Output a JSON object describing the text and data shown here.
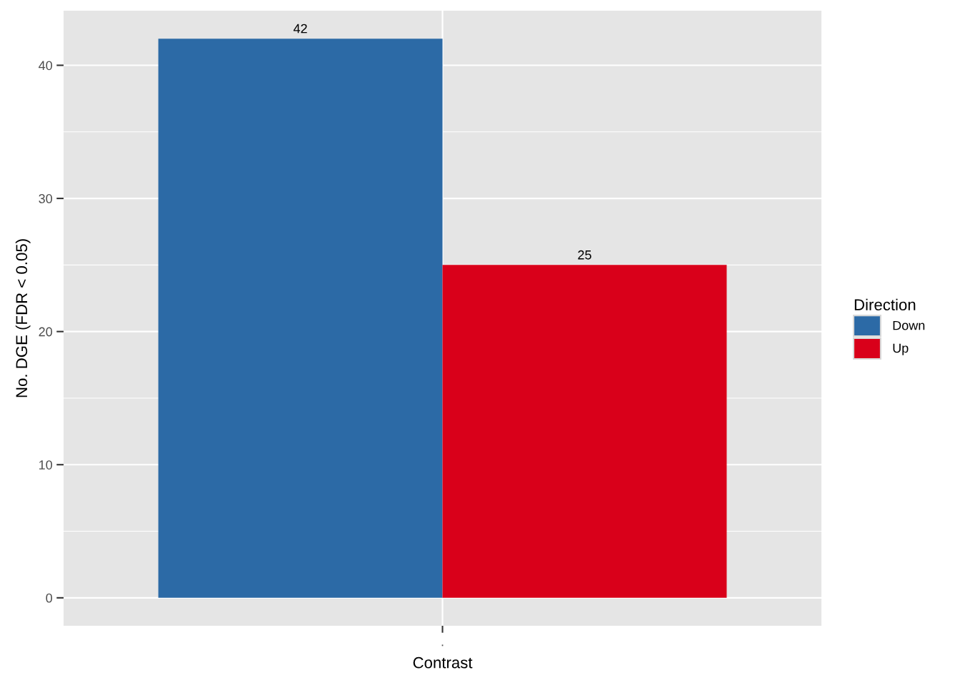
{
  "chart_data": {
    "type": "bar",
    "xlabel": "Contrast",
    "ylabel": "No. DGE (FDR < 0.05)",
    "legend_title": "Direction",
    "categories": [
      "."
    ],
    "series": [
      {
        "name": "Down",
        "color": "#2c6aa6",
        "values": [
          42
        ]
      },
      {
        "name": "Up",
        "color": "#d9001a",
        "values": [
          25
        ]
      }
    ],
    "ylim": [
      -2.1,
      44.1
    ],
    "yticks": [
      0,
      10,
      20,
      30,
      40
    ],
    "grid": true,
    "legend": "right",
    "data_labels": true
  }
}
